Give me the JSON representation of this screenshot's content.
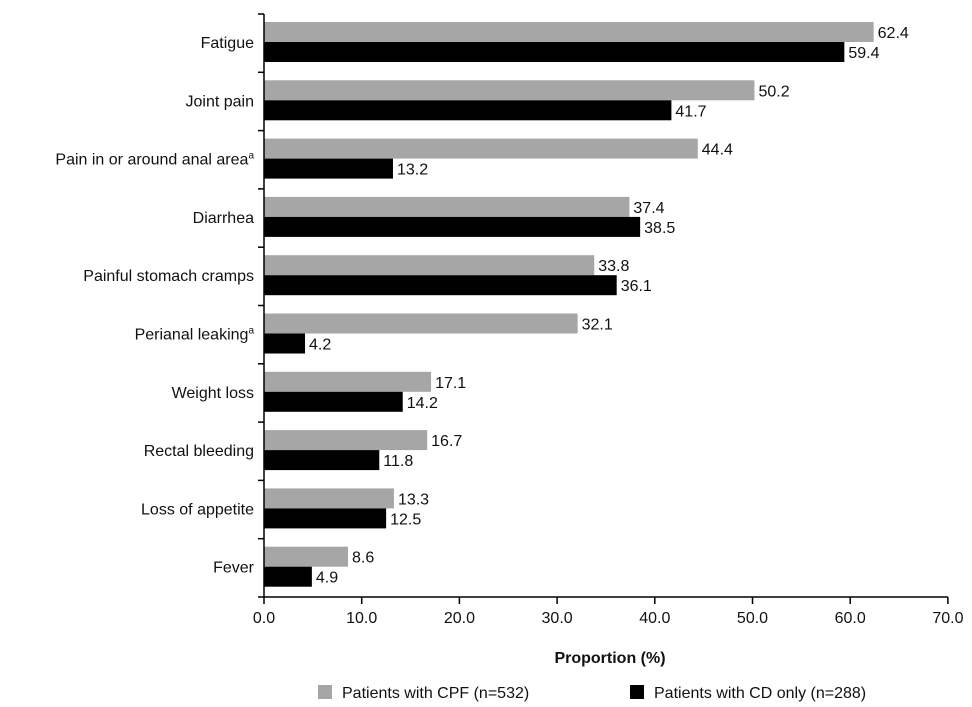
{
  "chart_data": {
    "type": "bar",
    "orientation": "horizontal",
    "title": "",
    "xlabel": "Proportion (%)",
    "ylabel": "",
    "xlim": [
      0,
      70
    ],
    "x_ticks": [
      "0.0",
      "10.0",
      "20.0",
      "30.0",
      "40.0",
      "50.0",
      "60.0",
      "70.0"
    ],
    "grid": false,
    "legend_position": "bottom",
    "categories": [
      {
        "label": "Fatigue",
        "sup": ""
      },
      {
        "label": "Joint pain",
        "sup": ""
      },
      {
        "label": "Pain in or around anal area",
        "sup": "a"
      },
      {
        "label": "Diarrhea",
        "sup": ""
      },
      {
        "label": "Painful stomach cramps",
        "sup": ""
      },
      {
        "label": "Perianal leaking",
        "sup": "a"
      },
      {
        "label": "Weight loss",
        "sup": ""
      },
      {
        "label": "Rectal bleeding",
        "sup": ""
      },
      {
        "label": "Loss of appetite",
        "sup": ""
      },
      {
        "label": "Fever",
        "sup": ""
      }
    ],
    "series": [
      {
        "name": "Patients with CPF (n=532)",
        "color": "#a6a6a6",
        "values": [
          62.4,
          50.2,
          44.4,
          37.4,
          33.8,
          32.1,
          17.1,
          16.7,
          13.3,
          8.6
        ],
        "labels": [
          "62.4",
          "50.2",
          "44.4",
          "37.4",
          "33.8",
          "32.1",
          "17.1",
          "16.7",
          "13.3",
          "8.6"
        ]
      },
      {
        "name": "Patients with CD only (n=288)",
        "color": "#000000",
        "values": [
          59.4,
          41.7,
          13.2,
          38.5,
          36.1,
          4.2,
          14.2,
          11.8,
          12.5,
          4.9
        ],
        "labels": [
          "59.4",
          "41.7",
          "13.2",
          "38.5",
          "36.1",
          "4.2",
          "14.2",
          "11.8",
          "12.5",
          "4.9"
        ]
      }
    ]
  }
}
